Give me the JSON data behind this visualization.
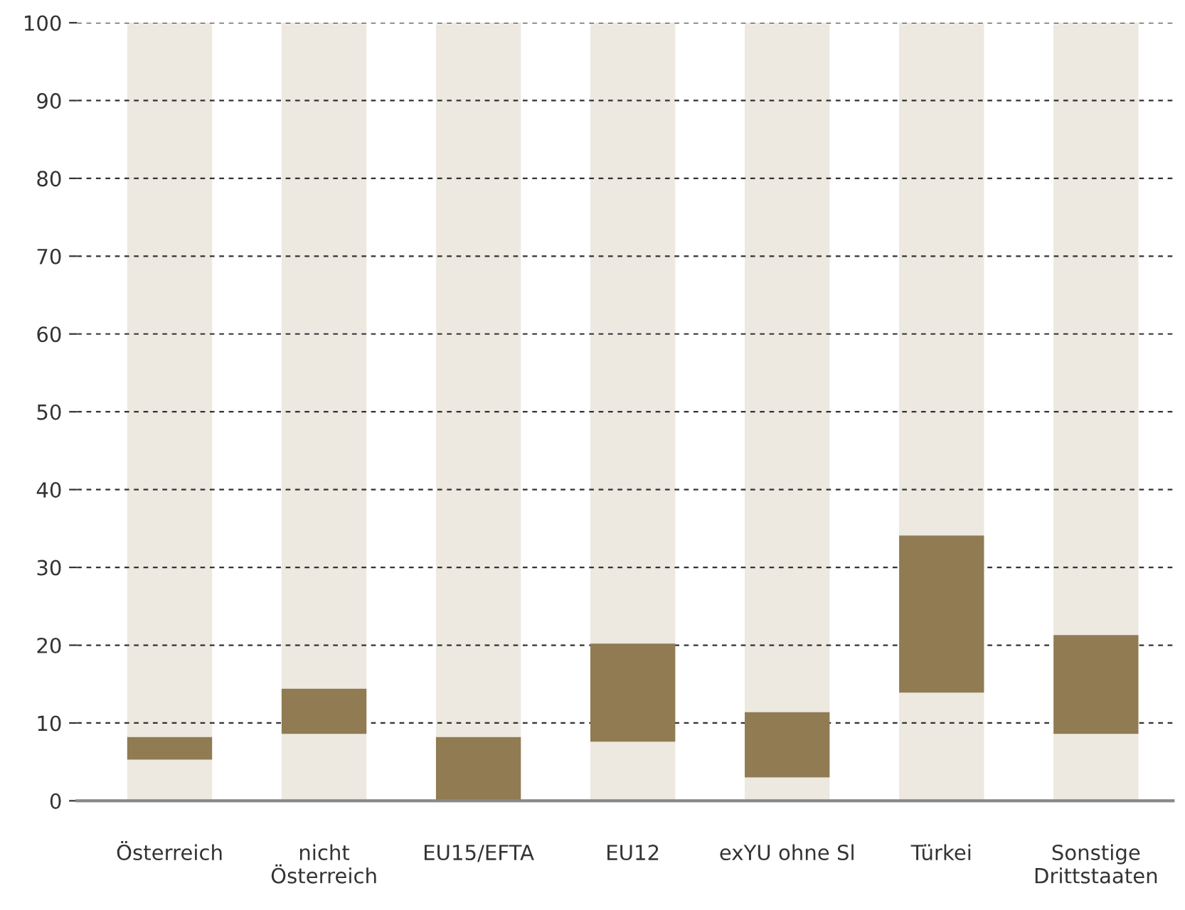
{
  "chart_data": {
    "type": "bar",
    "stacked": true,
    "categories": [
      "Österreich",
      "nicht\nÖsterreich",
      "EU15/EFTA",
      "EU12",
      "exYU ohne Sl",
      "Türkei",
      "Sonstige\nDrittstaaten"
    ],
    "series": [
      {
        "color": "#ede8e0",
        "values": [
          5.3,
          8.6,
          0,
          7.6,
          3.0,
          13.9,
          8.6
        ]
      },
      {
        "color": "#907b52",
        "values": [
          2.9,
          5.8,
          8.2,
          12.6,
          8.4,
          20.2,
          12.7
        ]
      },
      {
        "color": "#ede8e0",
        "values": [
          91.8,
          85.6,
          91.8,
          79.8,
          88.6,
          65.9,
          78.7
        ]
      }
    ],
    "ylim": [
      0,
      100
    ],
    "yticks": [
      0,
      10,
      20,
      30,
      40,
      50,
      60,
      70,
      80,
      90,
      100
    ],
    "grid": "y"
  }
}
